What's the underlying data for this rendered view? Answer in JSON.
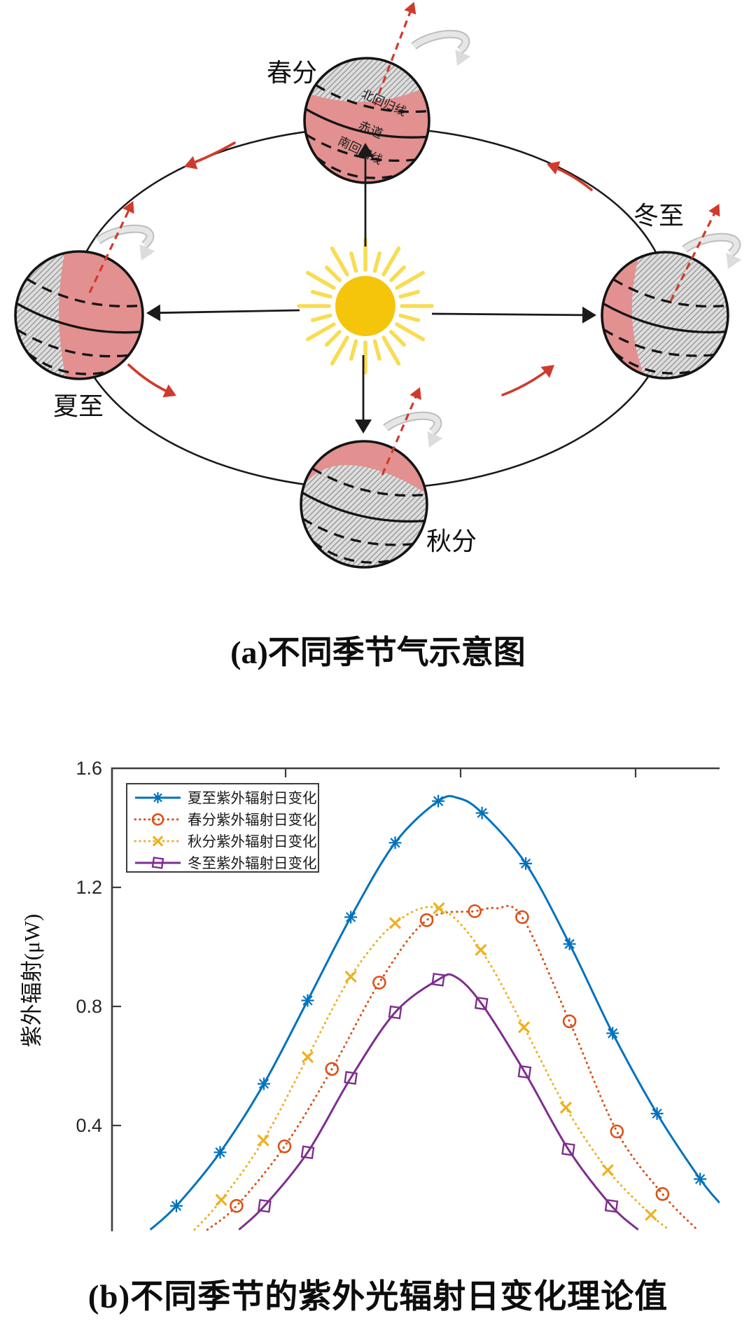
{
  "panel_a": {
    "caption": "(a)不同季节气示意图",
    "season_labels": {
      "spring": "春分",
      "summer": "夏至",
      "autumn": "秋分",
      "winter": "冬至"
    },
    "globe_annotations": {
      "tropic_of_cancer": "北回归线",
      "equator": "赤道",
      "tropic_of_capricorn": "南回归线"
    },
    "colors": {
      "day_side": "#E39090",
      "night_side": "#DEDEDE",
      "hatch_line": "#9B9B9B",
      "sun_core": "#F5C50C",
      "sun_rays": "#F8DC52",
      "red_accent": "#D03A2C",
      "outline": "#141414"
    }
  },
  "panel_b": {
    "caption": "(b)不同季节的紫外光辐射日变化理论值",
    "chart_data": {
      "type": "line",
      "title": "",
      "xlabel": "",
      "ylabel": "紫外辐射(μW)",
      "x_axis_note": "x axis (time of day) is cropped out of the screenshot; only unlabeled top-edge ticks are visible. x values below are fractions 0-1 of the visible plot width.",
      "x_unit": "fraction_of_plot_width",
      "ylim": [
        0,
        1.6
      ],
      "yticks": [
        "0.4",
        "0.8",
        "1.2",
        "1.6"
      ],
      "grid": false,
      "legend_position": "top-left",
      "frame_color": "#3C3C3C",
      "series": [
        {
          "name": "夏至紫外辐射日变化",
          "color": "#0072BD",
          "line_style": "solid",
          "marker": "asterisk",
          "peak": [
            0.57,
            1.5
          ],
          "curve": [
            [
              0.063,
              0.05
            ],
            [
              0.106,
              0.13
            ],
            [
              0.178,
              0.31
            ],
            [
              0.25,
              0.54
            ],
            [
              0.322,
              0.82
            ],
            [
              0.393,
              1.1
            ],
            [
              0.466,
              1.35
            ],
            [
              0.537,
              1.49
            ],
            [
              0.57,
              1.5
            ],
            [
              0.609,
              1.45
            ],
            [
              0.681,
              1.28
            ],
            [
              0.753,
              1.01
            ],
            [
              0.824,
              0.71
            ],
            [
              0.897,
              0.44
            ],
            [
              0.968,
              0.22
            ],
            [
              1.0,
              0.14
            ]
          ],
          "markers": [
            [
              0.106,
              0.13
            ],
            [
              0.178,
              0.31
            ],
            [
              0.25,
              0.54
            ],
            [
              0.322,
              0.82
            ],
            [
              0.393,
              1.1
            ],
            [
              0.466,
              1.35
            ],
            [
              0.537,
              1.49
            ],
            [
              0.609,
              1.45
            ],
            [
              0.681,
              1.28
            ],
            [
              0.753,
              1.01
            ],
            [
              0.824,
              0.71
            ],
            [
              0.897,
              0.44
            ],
            [
              0.968,
              0.22
            ]
          ]
        },
        {
          "name": "春分紫外辐射日变化",
          "color": "#D95319",
          "line_style": "dotted",
          "marker": "circle",
          "peak": [
            0.632,
            1.13
          ],
          "curve": [
            [
              0.157,
              0.05
            ],
            [
              0.205,
              0.13
            ],
            [
              0.284,
              0.33
            ],
            [
              0.362,
              0.59
            ],
            [
              0.44,
              0.88
            ],
            [
              0.518,
              1.09
            ],
            [
              0.597,
              1.12
            ],
            [
              0.632,
              1.13
            ],
            [
              0.675,
              1.1
            ],
            [
              0.753,
              0.75
            ],
            [
              0.831,
              0.38
            ],
            [
              0.906,
              0.17
            ],
            [
              0.963,
              0.05
            ]
          ],
          "markers": [
            [
              0.205,
              0.13
            ],
            [
              0.284,
              0.33
            ],
            [
              0.362,
              0.59
            ],
            [
              0.44,
              0.88
            ],
            [
              0.518,
              1.09
            ],
            [
              0.597,
              1.12
            ],
            [
              0.675,
              1.1
            ],
            [
              0.753,
              0.75
            ],
            [
              0.831,
              0.38
            ],
            [
              0.906,
              0.17
            ]
          ]
        },
        {
          "name": "秋分紫外辐射日变化",
          "color": "#EDB120",
          "line_style": "dotted",
          "marker": "x",
          "peak": [
            0.538,
            1.13
          ],
          "curve": [
            [
              0.136,
              0.05
            ],
            [
              0.18,
              0.15
            ],
            [
              0.249,
              0.35
            ],
            [
              0.322,
              0.63
            ],
            [
              0.393,
              0.9
            ],
            [
              0.466,
              1.08
            ],
            [
              0.538,
              1.13
            ],
            [
              0.607,
              0.99
            ],
            [
              0.678,
              0.73
            ],
            [
              0.747,
              0.46
            ],
            [
              0.816,
              0.25
            ],
            [
              0.887,
              0.1
            ],
            [
              0.917,
              0.05
            ]
          ],
          "markers": [
            [
              0.18,
              0.15
            ],
            [
              0.249,
              0.35
            ],
            [
              0.322,
              0.63
            ],
            [
              0.393,
              0.9
            ],
            [
              0.466,
              1.08
            ],
            [
              0.538,
              1.13
            ],
            [
              0.607,
              0.99
            ],
            [
              0.678,
              0.73
            ],
            [
              0.747,
              0.46
            ],
            [
              0.816,
              0.25
            ],
            [
              0.887,
              0.1
            ]
          ]
        },
        {
          "name": "冬至紫外辐射日变化",
          "color": "#7E2F8E",
          "line_style": "solid",
          "marker": "square",
          "peak": [
            0.565,
            0.9
          ],
          "curve": [
            [
              0.209,
              0.05
            ],
            [
              0.251,
              0.13
            ],
            [
              0.322,
              0.31
            ],
            [
              0.393,
              0.56
            ],
            [
              0.466,
              0.78
            ],
            [
              0.537,
              0.89
            ],
            [
              0.565,
              0.9
            ],
            [
              0.608,
              0.81
            ],
            [
              0.679,
              0.58
            ],
            [
              0.751,
              0.32
            ],
            [
              0.822,
              0.13
            ],
            [
              0.866,
              0.05
            ]
          ],
          "markers": [
            [
              0.251,
              0.13
            ],
            [
              0.322,
              0.31
            ],
            [
              0.393,
              0.56
            ],
            [
              0.466,
              0.78
            ],
            [
              0.537,
              0.89
            ],
            [
              0.608,
              0.81
            ],
            [
              0.679,
              0.58
            ],
            [
              0.751,
              0.32
            ],
            [
              0.822,
              0.13
            ]
          ]
        }
      ]
    }
  }
}
